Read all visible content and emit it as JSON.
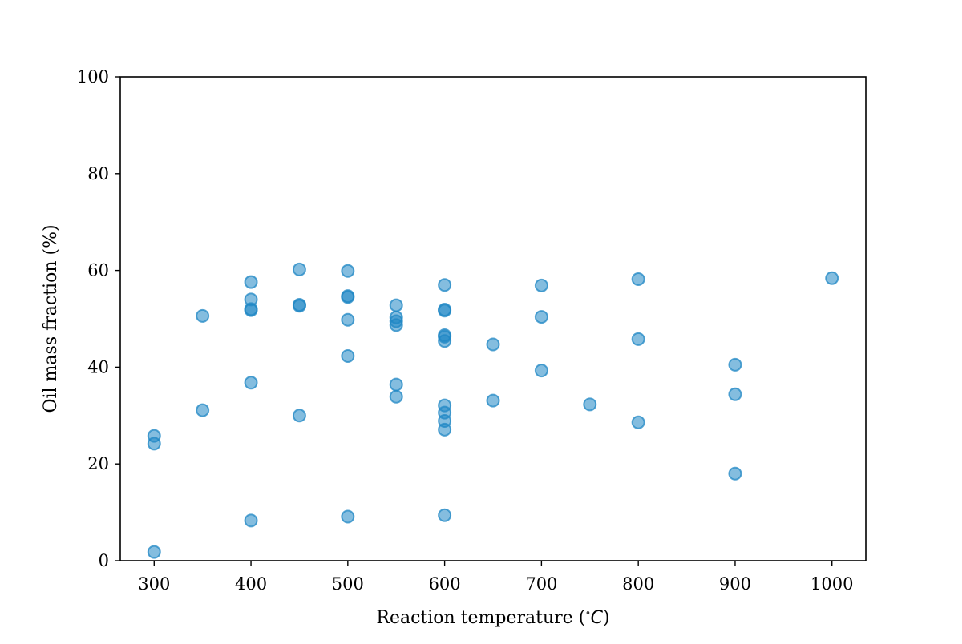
{
  "chart_data": {
    "type": "scatter",
    "title": "",
    "xlabel": "Reaction temperature ($^\\circ C$)",
    "xlabel_main": "Reaction temperature (",
    "xlabel_unit": "C",
    "xlabel_close": ")",
    "ylabel": "Oil mass fraction (%)",
    "xlim": [
      265,
      1035
    ],
    "ylim": [
      0,
      100
    ],
    "xticks": [
      300,
      400,
      500,
      600,
      700,
      800,
      900,
      1000
    ],
    "yticks": [
      0,
      20,
      40,
      60,
      80,
      100
    ],
    "grid": false,
    "color": "#1f87c4",
    "series": [
      {
        "points": [
          [
            300,
            1.8
          ],
          [
            300,
            24.2
          ],
          [
            300,
            25.8
          ],
          [
            350,
            31.1
          ],
          [
            350,
            50.6
          ],
          [
            400,
            8.3
          ],
          [
            400,
            36.8
          ],
          [
            400,
            51.8
          ],
          [
            400,
            52.0
          ],
          [
            400,
            54.0
          ],
          [
            400,
            57.6
          ],
          [
            450,
            30.0
          ],
          [
            450,
            52.7
          ],
          [
            450,
            52.9
          ],
          [
            450,
            60.2
          ],
          [
            500,
            9.1
          ],
          [
            500,
            42.3
          ],
          [
            500,
            49.8
          ],
          [
            500,
            54.5
          ],
          [
            500,
            54.7
          ],
          [
            500,
            59.9
          ],
          [
            550,
            33.9
          ],
          [
            550,
            36.4
          ],
          [
            550,
            48.7
          ],
          [
            550,
            49.5
          ],
          [
            550,
            50.3
          ],
          [
            550,
            52.8
          ],
          [
            600,
            9.4
          ],
          [
            600,
            27.1
          ],
          [
            600,
            28.9
          ],
          [
            600,
            30.6
          ],
          [
            600,
            32.1
          ],
          [
            600,
            45.4
          ],
          [
            600,
            46.3
          ],
          [
            600,
            46.6
          ],
          [
            600,
            51.7
          ],
          [
            600,
            51.9
          ],
          [
            600,
            57.0
          ],
          [
            650,
            33.1
          ],
          [
            650,
            44.7
          ],
          [
            700,
            39.3
          ],
          [
            700,
            50.4
          ],
          [
            700,
            56.9
          ],
          [
            750,
            32.3
          ],
          [
            800,
            28.6
          ],
          [
            800,
            45.8
          ],
          [
            800,
            58.2
          ],
          [
            900,
            18.0
          ],
          [
            900,
            34.4
          ],
          [
            900,
            40.5
          ],
          [
            1000,
            58.4
          ]
        ]
      }
    ]
  }
}
